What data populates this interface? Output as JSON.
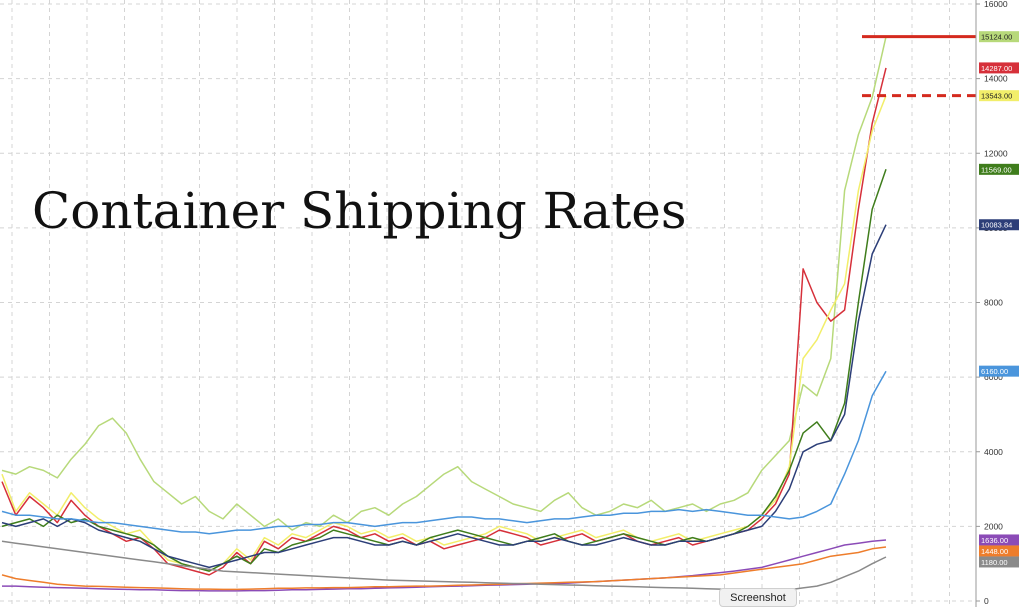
{
  "chart_data": {
    "type": "line",
    "title": "Container Shipping Rates",
    "xlabel": "",
    "ylabel": "",
    "ylim": [
      0,
      16000
    ],
    "yticks": [
      0,
      2000,
      4000,
      6000,
      8000,
      10000,
      12000,
      14000,
      16000
    ],
    "grid": true,
    "legend": "none",
    "reference_lines": [
      {
        "value": 15124,
        "style": "solid",
        "color": "#d42a1e"
      },
      {
        "value": 13543,
        "style": "dashed",
        "color": "#d42a1e"
      }
    ],
    "series": [
      {
        "color": "#b7d97a",
        "last_label": "15124.00",
        "last": 15124,
        "values": [
          3500,
          3400,
          3600,
          3500,
          3300,
          3800,
          4200,
          4700,
          4900,
          4500,
          3800,
          3200,
          2900,
          2600,
          2800,
          2400,
          2200,
          2600,
          2300,
          2000,
          2200,
          1900,
          2100,
          2000,
          2300,
          2100,
          2400,
          2500,
          2300,
          2600,
          2800,
          3100,
          3400,
          3600,
          3200,
          3000,
          2800,
          2600,
          2500,
          2400,
          2700,
          2900,
          2500,
          2300,
          2400,
          2600,
          2500,
          2700,
          2400,
          2500,
          2600,
          2400,
          2600,
          2700,
          2900,
          3500,
          3900,
          4300,
          5800,
          5500,
          6500,
          11000,
          12500,
          13500,
          15124
        ]
      },
      {
        "color": "#d6303a",
        "last_label": "14287.00",
        "last": 14287,
        "values": [
          3200,
          2300,
          2800,
          2500,
          2100,
          2700,
          2300,
          2000,
          1800,
          1600,
          1700,
          1400,
          1000,
          900,
          800,
          700,
          900,
          1300,
          1000,
          1600,
          1400,
          1700,
          1600,
          1800,
          2000,
          1900,
          1700,
          1800,
          1600,
          1700,
          1500,
          1600,
          1400,
          1500,
          1600,
          1700,
          1900,
          1800,
          1700,
          1500,
          1600,
          1700,
          1800,
          1600,
          1700,
          1800,
          1600,
          1500,
          1600,
          1700,
          1500,
          1600,
          1700,
          1800,
          1900,
          2200,
          2600,
          3400,
          8900,
          8000,
          7500,
          7800,
          10500,
          12800,
          14287
        ]
      },
      {
        "color": "#f2ee6a",
        "last_label": "13543.00",
        "last": 13543,
        "values": [
          3400,
          2400,
          2900,
          2600,
          2300,
          2900,
          2500,
          2200,
          2000,
          1800,
          1900,
          1500,
          1100,
          1000,
          900,
          800,
          1000,
          1400,
          1100,
          1700,
          1500,
          1800,
          1700,
          1900,
          2100,
          2000,
          1800,
          1900,
          1700,
          1800,
          1600,
          1700,
          1500,
          1600,
          1700,
          1800,
          2000,
          1900,
          1800,
          1600,
          1700,
          1800,
          1900,
          1700,
          1800,
          1900,
          1700,
          1600,
          1700,
          1800,
          1600,
          1700,
          1800,
          1900,
          2000,
          2300,
          2700,
          3600,
          6500,
          7000,
          7800,
          8500,
          11000,
          12600,
          13543
        ]
      },
      {
        "color": "#3f7d1c",
        "last_label": "11569.00",
        "last": 11569,
        "values": [
          2000,
          2100,
          2200,
          2000,
          2300,
          2100,
          2200,
          2000,
          1900,
          1800,
          1700,
          1500,
          1200,
          1000,
          900,
          800,
          1000,
          1200,
          1000,
          1400,
          1300,
          1500,
          1600,
          1700,
          1900,
          1800,
          1700,
          1600,
          1500,
          1600,
          1500,
          1700,
          1800,
          1900,
          1800,
          1700,
          1600,
          1500,
          1600,
          1700,
          1800,
          1600,
          1500,
          1600,
          1700,
          1800,
          1700,
          1600,
          1500,
          1600,
          1700,
          1600,
          1700,
          1800,
          2000,
          2300,
          2800,
          3500,
          4500,
          4800,
          4300,
          5300,
          8000,
          10500,
          11569
        ]
      },
      {
        "color": "#2c3e78",
        "last_label": "10083.84",
        "last": 10083.84,
        "values": [
          2100,
          2000,
          2100,
          2200,
          2000,
          2200,
          2100,
          1900,
          1800,
          1700,
          1600,
          1400,
          1200,
          1100,
          1000,
          900,
          1000,
          1100,
          1200,
          1300,
          1300,
          1400,
          1500,
          1600,
          1700,
          1700,
          1600,
          1500,
          1500,
          1600,
          1500,
          1600,
          1700,
          1800,
          1700,
          1600,
          1500,
          1500,
          1600,
          1600,
          1700,
          1600,
          1500,
          1500,
          1600,
          1700,
          1600,
          1500,
          1500,
          1600,
          1600,
          1600,
          1700,
          1800,
          1900,
          2000,
          2400,
          3000,
          4000,
          4200,
          4300,
          5000,
          7500,
          9300,
          10083.84
        ]
      },
      {
        "color": "#4a95dc",
        "last_label": "6160.00",
        "last": 6160,
        "values": [
          2400,
          2300,
          2300,
          2250,
          2200,
          2200,
          2150,
          2100,
          2100,
          2050,
          2000,
          1950,
          1900,
          1850,
          1850,
          1800,
          1850,
          1900,
          1900,
          1950,
          2000,
          2000,
          2050,
          2050,
          2100,
          2100,
          2050,
          2000,
          2050,
          2100,
          2100,
          2150,
          2200,
          2250,
          2250,
          2200,
          2200,
          2150,
          2100,
          2150,
          2200,
          2200,
          2250,
          2300,
          2300,
          2350,
          2350,
          2400,
          2400,
          2450,
          2400,
          2450,
          2400,
          2350,
          2300,
          2300,
          2250,
          2200,
          2250,
          2400,
          2600,
          3400,
          4300,
          5500,
          6160
        ]
      },
      {
        "color": "#8b4bb7",
        "last_label": "1636.00",
        "last": 1636,
        "values": [
          400,
          400,
          380,
          370,
          360,
          350,
          340,
          330,
          320,
          310,
          300,
          300,
          290,
          280,
          280,
          270,
          270,
          270,
          280,
          280,
          290,
          300,
          300,
          310,
          320,
          330,
          330,
          340,
          350,
          360,
          370,
          380,
          390,
          400,
          410,
          420,
          430,
          440,
          450,
          460,
          470,
          480,
          500,
          520,
          540,
          560,
          580,
          600,
          620,
          650,
          680,
          720,
          760,
          800,
          850,
          900,
          1000,
          1100,
          1200,
          1300,
          1400,
          1500,
          1550,
          1600,
          1636
        ]
      },
      {
        "color": "#ee7d2b",
        "last_label": "1448.00",
        "last": 1448,
        "values": [
          700,
          600,
          550,
          500,
          450,
          420,
          400,
          390,
          380,
          370,
          360,
          350,
          340,
          330,
          320,
          320,
          310,
          310,
          320,
          330,
          340,
          340,
          350,
          350,
          360,
          360,
          370,
          380,
          380,
          390,
          400,
          400,
          410,
          420,
          430,
          440,
          450,
          460,
          470,
          480,
          490,
          500,
          510,
          520,
          540,
          560,
          580,
          600,
          620,
          640,
          660,
          680,
          700,
          750,
          800,
          850,
          900,
          950,
          1000,
          1100,
          1200,
          1250,
          1300,
          1400,
          1448
        ]
      },
      {
        "color": "#8a8a8a",
        "last_label": "1180.00",
        "last": 1180,
        "values": [
          1600,
          1550,
          1500,
          1450,
          1400,
          1350,
          1300,
          1250,
          1200,
          1150,
          1100,
          1050,
          1000,
          950,
          900,
          850,
          800,
          780,
          760,
          740,
          720,
          700,
          680,
          660,
          640,
          620,
          600,
          580,
          560,
          550,
          540,
          530,
          520,
          510,
          500,
          490,
          480,
          470,
          460,
          450,
          440,
          430,
          420,
          410,
          400,
          390,
          380,
          370,
          360,
          350,
          340,
          330,
          320,
          310,
          300,
          300,
          300,
          300,
          350,
          400,
          500,
          650,
          800,
          1000,
          1180
        ]
      }
    ]
  },
  "ui": {
    "screenshot_label": "Screenshot"
  }
}
